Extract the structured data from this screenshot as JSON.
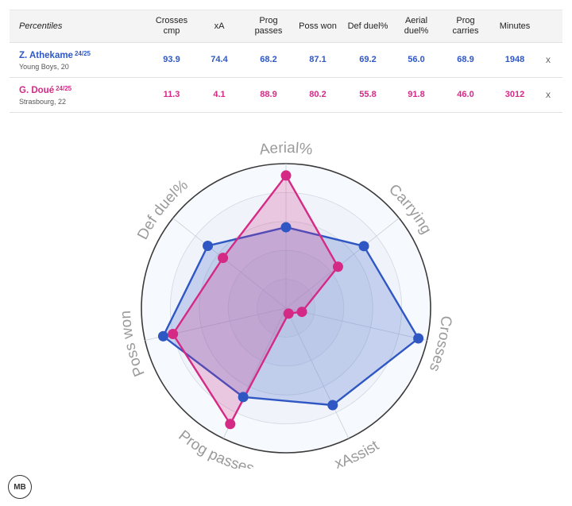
{
  "table": {
    "title": "Percentiles",
    "headers": [
      {
        "line1": "Crosses",
        "line2": "cmp"
      },
      {
        "line1": "xA",
        "line2": ""
      },
      {
        "line1": "Prog",
        "line2": "passes"
      },
      {
        "line1": "Poss won",
        "line2": ""
      },
      {
        "line1": "Def duel%",
        "line2": ""
      },
      {
        "line1": "Aerial",
        "line2": "duel%"
      },
      {
        "line1": "Prog",
        "line2": "carries"
      },
      {
        "line1": "Minutes",
        "line2": ""
      }
    ],
    "players": [
      {
        "name": "Z. Athekame",
        "season": "24/25",
        "sub": "Young Boys, 20",
        "values": [
          "93.9",
          "74.4",
          "68.2",
          "87.1",
          "69.2",
          "56.0",
          "68.9",
          "1948"
        ],
        "remove": "x",
        "color": "#2f57c4"
      },
      {
        "name": "G. Doué",
        "season": "24/25",
        "sub": "Strasbourg, 22",
        "values": [
          "11.3",
          "4.1",
          "88.9",
          "80.2",
          "55.8",
          "91.8",
          "46.0",
          "3012"
        ],
        "remove": "x",
        "color": "#d42a86"
      }
    ]
  },
  "chart_data": {
    "type": "radar",
    "axes": [
      "Aerial%",
      "Carrying",
      "Crosses",
      "xAssist",
      "Prog passes",
      "Poss won",
      "Def duel%"
    ],
    "range": [
      0,
      100
    ],
    "series": [
      {
        "name": "Z. Athekame",
        "color": "#2f57c4",
        "values": [
          56.0,
          68.9,
          93.9,
          74.4,
          68.2,
          87.1,
          69.2
        ]
      },
      {
        "name": "G. Doué",
        "color": "#d42a86",
        "values": [
          91.8,
          46.0,
          11.3,
          4.1,
          88.9,
          80.2,
          55.8
        ]
      }
    ],
    "rings": [
      0.2,
      0.4,
      0.6,
      0.8,
      1.0
    ]
  },
  "logo_text": "MB"
}
